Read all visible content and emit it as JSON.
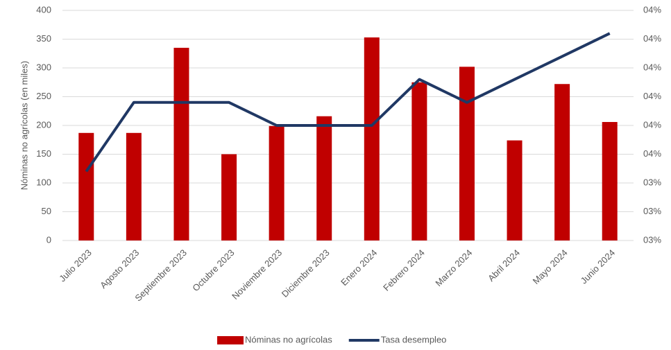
{
  "chart_data": {
    "type": "bar_line",
    "y_label": "Nóminas no agrícolas (en miles)",
    "categories": [
      "Julio 2023",
      "Agosto 2023",
      "Septiembre 2023",
      "Octubre 2023",
      "Noviembre 2023",
      "Diciembre 2023",
      "Enero 2024",
      "Febrero 2024",
      "Marzo 2024",
      "Abril 2024",
      "Mayo 2024",
      "Junio 2024"
    ],
    "series": [
      {
        "name": "Nóminas no agrícolas",
        "color": "#c00000",
        "type": "bar",
        "values": [
          187,
          187,
          335,
          150,
          199,
          216,
          353,
          275,
          302,
          174,
          272,
          206
        ]
      },
      {
        "name": "Tasa desempleo",
        "color": "#203864",
        "type": "line",
        "axis": "y2",
        "values": [
          3.5,
          3.8,
          3.8,
          3.8,
          3.7,
          3.7,
          3.7,
          3.9,
          3.8,
          3.9,
          4.0,
          4.1
        ]
      }
    ],
    "ylim": [
      0,
      400
    ],
    "yticks": [
      0,
      50,
      100,
      150,
      200,
      250,
      300,
      350,
      400
    ],
    "y2lim": [
      3.2,
      4.2
    ],
    "y2ticks": [
      {
        "value": 3.2,
        "label": "03%"
      },
      {
        "value": 3.325,
        "label": "03%"
      },
      {
        "value": 3.45,
        "label": "03%"
      },
      {
        "value": 3.575,
        "label": "04%"
      },
      {
        "value": 3.7,
        "label": "04%"
      },
      {
        "value": 3.825,
        "label": "04%"
      },
      {
        "value": 3.95,
        "label": "04%"
      },
      {
        "value": 4.075,
        "label": "04%"
      },
      {
        "value": 4.2,
        "label": "04%"
      }
    ],
    "grid": true,
    "legend": "bottom"
  }
}
